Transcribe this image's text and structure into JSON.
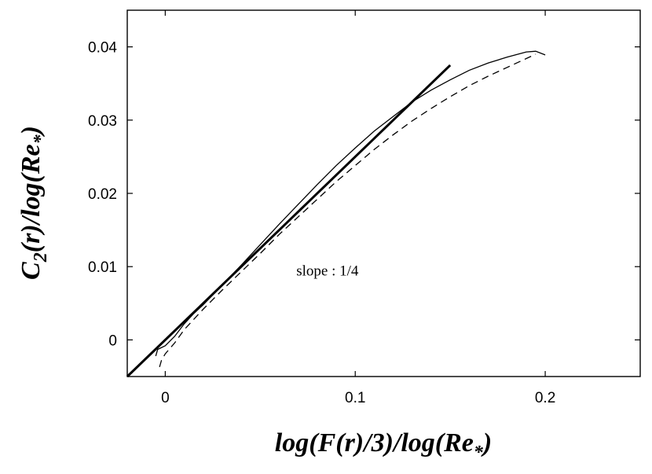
{
  "chart_data": {
    "type": "line",
    "xlim": [
      -0.02,
      0.25
    ],
    "ylim": [
      -0.005,
      0.045
    ],
    "x_ticks": [
      {
        "value": 0,
        "label": "0"
      },
      {
        "value": 0.1,
        "label": "0.1"
      },
      {
        "value": 0.2,
        "label": "0.2"
      }
    ],
    "y_ticks": [
      {
        "value": 0,
        "label": "0"
      },
      {
        "value": 0.01,
        "label": "0.01"
      },
      {
        "value": 0.02,
        "label": "0.02"
      },
      {
        "value": 0.03,
        "label": "0.03"
      },
      {
        "value": 0.04,
        "label": "0.04"
      }
    ],
    "xlabel": {
      "main": "log(F(r)/3)/log(Re",
      "sub": "*",
      "close": ")"
    },
    "ylabel": {
      "main": "C",
      "sub": "2",
      "mid": "(r)/log(Re",
      "sub2": "*",
      "close": ")"
    },
    "annotation": "slope : 1/4",
    "annotation_pos": {
      "x": 0.069,
      "y": 0.0088
    },
    "grid": false,
    "series": [
      {
        "style": "thick-solid",
        "x": [
          -0.02,
          0.15
        ],
        "y": [
          -0.005,
          0.0375
        ]
      },
      {
        "style": "thin-solid",
        "x": [
          -0.005,
          -0.004,
          0.0,
          0.005,
          0.01,
          0.015,
          0.02,
          0.03,
          0.04,
          0.05,
          0.06,
          0.07,
          0.08,
          0.09,
          0.1,
          0.11,
          0.12,
          0.13,
          0.14,
          0.15,
          0.16,
          0.17,
          0.18,
          0.19,
          0.195,
          0.2
        ],
        "y": [
          -0.0022,
          -0.0013,
          -0.0008,
          0.0005,
          0.0022,
          0.0036,
          0.0048,
          0.0075,
          0.0102,
          0.013,
          0.0158,
          0.0185,
          0.0212,
          0.0238,
          0.0262,
          0.0285,
          0.0305,
          0.0325,
          0.0341,
          0.0355,
          0.0368,
          0.0378,
          0.0386,
          0.0393,
          0.0394,
          0.0389
        ]
      },
      {
        "style": "dashed",
        "x": [
          -0.003,
          -0.002,
          0.0,
          0.005,
          0.01,
          0.02,
          0.03,
          0.04,
          0.05,
          0.06,
          0.07,
          0.08,
          0.09,
          0.1,
          0.11,
          0.12,
          0.13,
          0.14,
          0.15,
          0.16,
          0.17,
          0.18,
          0.19,
          0.195
        ],
        "y": [
          -0.0037,
          -0.0028,
          -0.0019,
          -0.0004,
          0.0014,
          0.0042,
          0.0068,
          0.0093,
          0.0118,
          0.0144,
          0.0168,
          0.0192,
          0.0216,
          0.0238,
          0.026,
          0.028,
          0.0299,
          0.0316,
          0.0332,
          0.0347,
          0.036,
          0.0372,
          0.0384,
          0.039
        ]
      }
    ]
  }
}
